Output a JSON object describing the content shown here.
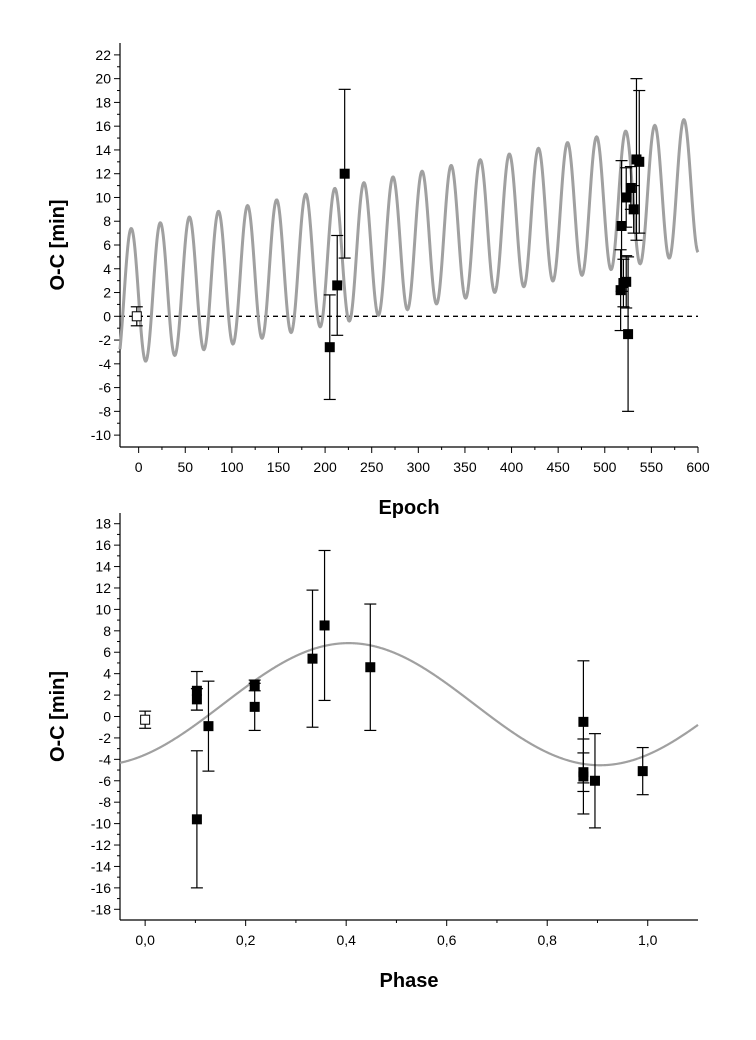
{
  "chart_data": [
    {
      "type": "scatter",
      "xlabel": "Epoch",
      "ylabel": "O-C  [min]",
      "xlim": [
        -20,
        600
      ],
      "ylim": [
        -11,
        23
      ],
      "x_ticks": [
        0,
        50,
        100,
        150,
        200,
        250,
        300,
        350,
        400,
        450,
        500,
        550,
        600
      ],
      "y_ticks": [
        -10,
        -8,
        -6,
        -4,
        -2,
        0,
        2,
        4,
        6,
        8,
        10,
        12,
        14,
        16,
        18,
        20,
        22
      ],
      "x_tick_labels": [
        "0",
        "50",
        "100",
        "150",
        "200",
        "250",
        "300",
        "350",
        "400",
        "450",
        "500",
        "550",
        "600"
      ],
      "y_tick_labels": [
        "-10",
        "-8",
        "-6",
        "-4",
        "-2",
        "0",
        "2",
        "4",
        "6",
        "8",
        "10",
        "12",
        "14",
        "16",
        "18",
        "20",
        "22"
      ],
      "zero_line": "dashed",
      "model_curve": {
        "color": "#a0a0a0",
        "description_values": {
          "offset_at_epoch_minus20": 1.5,
          "slope_per_epoch": 0.01545,
          "amplitude": 5.7,
          "period_epochs": 31.2,
          "phase_zero_epoch": -8
        }
      },
      "series": [
        {
          "marker": "open-square",
          "points": [
            {
              "x": -2,
              "y": 0.0,
              "err": 0.8
            }
          ]
        },
        {
          "marker": "filled-square",
          "points": [
            {
              "x": 205,
              "y": -2.6,
              "err": 4.4
            },
            {
              "x": 213,
              "y": 2.6,
              "err": 4.2
            },
            {
              "x": 221,
              "y": 12.0,
              "err": 7.1
            },
            {
              "x": 517,
              "y": 2.2,
              "err": 3.4
            },
            {
              "x": 518,
              "y": 7.6,
              "err": 5.5
            },
            {
              "x": 520,
              "y": 2.8,
              "err": 2.0
            },
            {
              "x": 523,
              "y": 2.9,
              "err": 2.2
            },
            {
              "x": 523,
              "y": 10.0,
              "err": 2.5
            },
            {
              "x": 525,
              "y": -1.5,
              "err": 6.5
            },
            {
              "x": 528,
              "y": 10.8,
              "err": 1.8
            },
            {
              "x": 531,
              "y": 9.0,
              "err": 2.0
            },
            {
              "x": 534,
              "y": 13.2,
              "err": 6.8
            },
            {
              "x": 537,
              "y": 13.0,
              "err": 6.0
            }
          ]
        }
      ]
    },
    {
      "type": "scatter",
      "xlabel": "Phase",
      "ylabel": "O-C  [min]",
      "xlim": [
        -0.05,
        1.1
      ],
      "ylim": [
        -19,
        19
      ],
      "x_ticks": [
        0.0,
        0.2,
        0.4,
        0.6,
        0.8,
        1.0
      ],
      "y_ticks": [
        -18,
        -16,
        -14,
        -12,
        -10,
        -8,
        -6,
        -4,
        -2,
        0,
        2,
        4,
        6,
        8,
        10,
        12,
        14,
        16,
        18
      ],
      "x_tick_labels": [
        "0,0",
        "0,2",
        "0,4",
        "0,6",
        "0,8",
        "1,0"
      ],
      "y_tick_labels": [
        "-18",
        "-16",
        "-14",
        "-12",
        "-10",
        "-8",
        "-6",
        "-4",
        "-2",
        "0",
        "2",
        "4",
        "6",
        "8",
        "10",
        "12",
        "14",
        "16",
        "18"
      ],
      "model_curve": {
        "color": "#a0a0a0",
        "description_values": {
          "offset": 1.15,
          "amplitude": 5.7,
          "peak_phase": 0.405
        }
      },
      "series": [
        {
          "marker": "open-square",
          "points": [
            {
              "x": 0.0,
              "y": -0.3,
              "err": 0.8
            }
          ]
        },
        {
          "marker": "filled-square",
          "points": [
            {
              "x": 0.103,
              "y": 2.4,
              "err": 1.8
            },
            {
              "x": 0.103,
              "y": 1.6,
              "err": 1.0
            },
            {
              "x": 0.103,
              "y": -9.6,
              "err": 6.4
            },
            {
              "x": 0.126,
              "y": -0.9,
              "err": 4.2
            },
            {
              "x": 0.218,
              "y": 2.9,
              "err": 0.5
            },
            {
              "x": 0.218,
              "y": 0.9,
              "err": 2.2
            },
            {
              "x": 0.333,
              "y": 5.4,
              "err": 6.4
            },
            {
              "x": 0.357,
              "y": 8.5,
              "err": 7.0
            },
            {
              "x": 0.448,
              "y": 4.6,
              "err": 5.9
            },
            {
              "x": 0.872,
              "y": -0.5,
              "err": 5.7
            },
            {
              "x": 0.872,
              "y": -5.2,
              "err": 1.8
            },
            {
              "x": 0.872,
              "y": -5.6,
              "err": 3.5
            },
            {
              "x": 0.895,
              "y": -6.0,
              "err": 4.4
            },
            {
              "x": 0.99,
              "y": -5.1,
              "err": 2.2
            }
          ]
        }
      ]
    }
  ]
}
